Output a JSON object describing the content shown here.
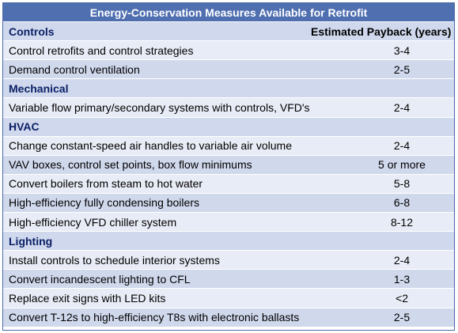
{
  "table": {
    "title": "Energy-Conservation Measures Available for Retrofit",
    "payback_header": "Estimated Payback (years)",
    "sections": [
      {
        "name": "Controls",
        "rows": [
          {
            "measure": "Control retrofits and control strategies",
            "payback": "3-4"
          },
          {
            "measure": "Demand control ventilation",
            "payback": "2-5"
          }
        ]
      },
      {
        "name": "Mechanical",
        "rows": [
          {
            "measure": "Variable flow primary/secondary systems with controls, VFD's",
            "payback": "2-4"
          }
        ]
      },
      {
        "name": "HVAC",
        "rows": [
          {
            "measure": "Change constant-speed air handles to variable air volume",
            "payback": "2-4"
          },
          {
            "measure": "VAV boxes, control set points, box flow minimums",
            "payback": "5 or more"
          },
          {
            "measure": "Convert boilers from steam to hot water",
            "payback": "5-8"
          },
          {
            "measure": "High-efficiency fully condensing boilers",
            "payback": "6-8"
          },
          {
            "measure": "High-efficiency VFD chiller system",
            "payback": "8-12"
          }
        ]
      },
      {
        "name": "Lighting",
        "rows": [
          {
            "measure": "Install controls to schedule interior systems",
            "payback": "2-4"
          },
          {
            "measure": "Convert incandescent lighting to CFL",
            "payback": "1-3"
          },
          {
            "measure": "Replace exit signs with LED kits",
            "payback": "<2"
          },
          {
            "measure": "Convert T-12s to high-efficiency T8s with electronic ballasts",
            "payback": "2-5"
          }
        ]
      }
    ]
  }
}
